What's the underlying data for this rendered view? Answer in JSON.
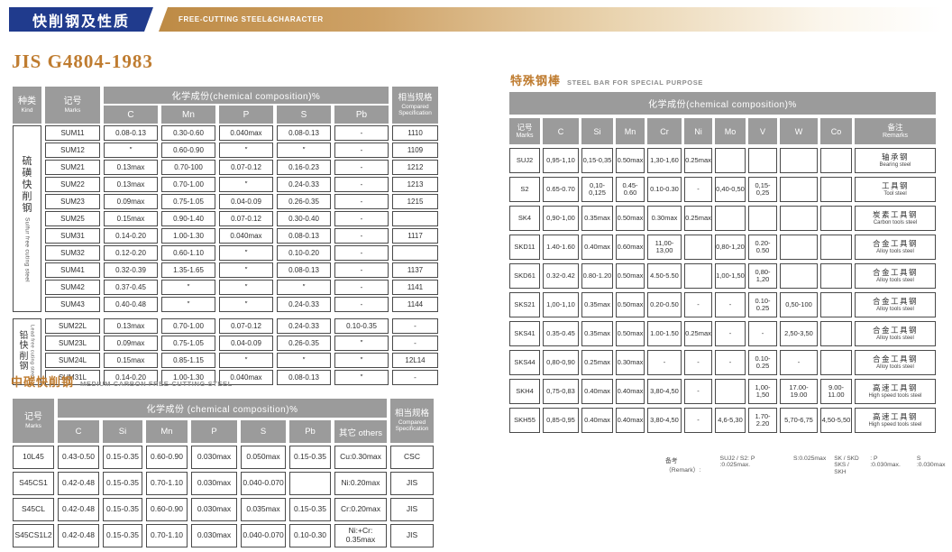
{
  "banner": {
    "title_cn": "快削钢及性质",
    "title_en": "FREE-CUTTING STEEL&CHARACTER"
  },
  "colors": {
    "navy": "#203b8d",
    "gold": "#bd8a44",
    "bronze_text": "#bf7c30",
    "header_gray": "#9b9b9b"
  },
  "jis": {
    "title": "JIS G4804-1983",
    "header": {
      "kind_cn": "种类",
      "kind_en": "Kind",
      "marks_cn": "记号",
      "marks_en": "Marks",
      "composition": "化学成份(chemical composition)%",
      "elements": [
        "C",
        "Mn",
        "P",
        "S",
        "Pb"
      ],
      "spec_cn": "相当规格",
      "spec_en1": "Compared",
      "spec_en2": "Specification"
    },
    "groups": [
      {
        "kind_cn": "硫磺快削钢",
        "kind_en": "Sulfur free cuting steel",
        "rows": [
          [
            "SUM11",
            "0.08-0.13",
            "0.30-0.60",
            "0.040max",
            "0.08-0.13",
            "-",
            "1110"
          ],
          [
            "SUM12",
            "″",
            "0.60-0.90",
            "″",
            "″",
            "-",
            "1109"
          ],
          [
            "SUM21",
            "0.13max",
            "0.70-100",
            "0.07-0.12",
            "0.16-0.23",
            "-",
            "1212"
          ],
          [
            "SUM22",
            "0.13max",
            "0.70-1.00",
            "″",
            "0.24-0.33",
            "-",
            "1213"
          ],
          [
            "SUM23",
            "0.09max",
            "0.75-1.05",
            "0.04-0.09",
            "0.26-0.35",
            "-",
            "1215"
          ],
          [
            "SUM25",
            "0.15max",
            "0.90-1.40",
            "0.07-0.12",
            "0.30-0.40",
            "-",
            ""
          ],
          [
            "SUM31",
            "0.14-0.20",
            "1.00-1.30",
            "0.040max",
            "0.08-0.13",
            "-",
            "1117"
          ],
          [
            "SUM32",
            "0.12-0.20",
            "0.60-1.10",
            "″",
            "0.10-0.20",
            "-",
            ""
          ],
          [
            "SUM41",
            "0.32-0.39",
            "1.35-1.65",
            "″",
            "0.08-0.13",
            "-",
            "1137"
          ],
          [
            "SUM42",
            "0.37-0.45",
            "″",
            "″",
            "″",
            "-",
            "1141"
          ],
          [
            "SUM43",
            "0.40-0.48",
            "″",
            "″",
            "0.24-0.33",
            "-",
            "1144"
          ]
        ]
      },
      {
        "kind_cn": "铅快削钢",
        "kind_en": "Lead free cuting steel",
        "rows": [
          [
            "SUM22L",
            "0.13max",
            "0.70-1.00",
            "0.07-0.12",
            "0.24-0.33",
            "0.10-0.35",
            "-"
          ],
          [
            "SUM23L",
            "0.09max",
            "0.75-1.05",
            "0.04-0.09",
            "0.26-0.35",
            "″",
            "-"
          ],
          [
            "SUM24L",
            "0.15max",
            "0.85-1.15",
            "″",
            "″",
            "″",
            "12L14"
          ],
          [
            "SUM31L",
            "0.14-0.20",
            "1.00-1.30",
            "0.040max",
            "0.08-0.13",
            "″",
            "-"
          ]
        ]
      }
    ]
  },
  "medium": {
    "title_cn": "中碳快削钢",
    "title_en": "MEDIUM CARBON FREE-CUTTING STEEL",
    "header": {
      "marks_cn": "记号",
      "marks_en": "Marks",
      "composition": "化学成份 (chemical composition)%",
      "elements": [
        "C",
        "Si",
        "Mn",
        "P",
        "S",
        "Pb",
        "其它 others"
      ],
      "spec_cn": "相当规格",
      "spec_en1": "Compared",
      "spec_en2": "Specification"
    },
    "rows": [
      [
        "10L45",
        "0.43-0.50",
        "0.15-0.35",
        "0.60-0.90",
        "0.030max",
        "0.050max",
        "0.15-0.35",
        "Cu:0.30max",
        "CSC"
      ],
      [
        "S45CS1",
        "0.42-0.48",
        "0.15-0.35",
        "0.70-1.10",
        "0.030max",
        "0.040-0.070",
        "",
        "Ni:0.20max",
        "JIS"
      ],
      [
        "S45CL",
        "0.42-0.48",
        "0.15-0.35",
        "0.60-0.90",
        "0.030max",
        "0.035max",
        "0.15-0.35",
        "Cr:0.20max",
        "JIS"
      ],
      [
        "S45CS1L2",
        "0.42-0.48",
        "0.15-0.35",
        "0.70-1.10",
        "0.030max",
        "0.040-0.070",
        "0.10-0.30",
        "Ni:+Cr:\n0.35max",
        "JIS"
      ]
    ]
  },
  "special": {
    "title_cn": "特殊钢棒",
    "title_en": "STEEL BAR FOR SPECIAL PURPOSE",
    "header": {
      "composition": "化学成份(chemical composition)%",
      "marks_cn": "记号",
      "marks_en": "Marks",
      "elements": [
        "C",
        "Si",
        "Mn",
        "Cr",
        "Ni",
        "Mo",
        "V",
        "W",
        "Co"
      ],
      "remarks_cn": "备注",
      "remarks_en": "Remarks"
    },
    "rows": [
      {
        "mark": "SUJ2",
        "values": [
          "0,95-1,10",
          "0,15-0,35",
          "0.50max",
          "1,30-1,60",
          "0.25max",
          "",
          "",
          "",
          ""
        ],
        "remark_cn": "轴承钢",
        "remark_en": "Bearing steel"
      },
      {
        "mark": "S2",
        "values": [
          "0.65-0.70",
          "0,10-0,125",
          "0.45-0.60",
          "0.10-0.30",
          "-",
          "0,40-0,50",
          "0,15-0,25",
          "",
          ""
        ],
        "remark_cn": "工具钢",
        "remark_en": "Tool steel"
      },
      {
        "mark": "SK4",
        "values": [
          "0,90-1,00",
          "0.35max",
          "0.50max",
          "0.30max",
          "0.25max",
          "",
          "",
          "",
          ""
        ],
        "remark_cn": "炭素工具钢",
        "remark_en": "Carbon tools steel"
      },
      {
        "mark": "SKD11",
        "values": [
          "1.40-1.60",
          "0.40max",
          "0.60max",
          "11,00-13,00",
          "",
          "0,80-1,20",
          "0.20-0.50",
          "",
          ""
        ],
        "remark_cn": "合金工具钢",
        "remark_en": "Alloy tools steel"
      },
      {
        "mark": "SKD61",
        "values": [
          "0.32-0.42",
          "0.80-1.20",
          "0.50max",
          "4.50-5.50",
          "",
          "1,00-1,50",
          "0,80-1,20",
          "",
          ""
        ],
        "remark_cn": "合金工具钢",
        "remark_en": "Alloy tools steel"
      },
      {
        "mark": "SKS21",
        "values": [
          "1,00-1,10",
          "0.35max",
          "0.50max",
          "0.20-0.50",
          "-",
          "-",
          "0.10-0.25",
          "0,50-100",
          ""
        ],
        "remark_cn": "合金工具钢",
        "remark_en": "Alloy tools steel"
      },
      {
        "mark": "SKS41",
        "values": [
          "0.35-0.45",
          "0.35max",
          "0.50max",
          "1.00-1.50",
          "0.25max",
          "-",
          "-",
          "2,50-3,50",
          ""
        ],
        "remark_cn": "合金工具钢",
        "remark_en": "Alloy tools steel"
      },
      {
        "mark": "SKS44",
        "values": [
          "0,80-0,90",
          "0.25max",
          "0.30max",
          "-",
          "-",
          "-",
          "0.10-0.25",
          "-",
          ""
        ],
        "remark_cn": "合金工具钢",
        "remark_en": "Alloy tools steel"
      },
      {
        "mark": "SKH4",
        "values": [
          "0,75-0,83",
          "0.40max",
          "0.40max",
          "3,80-4,50",
          "-",
          "",
          "1,00-1,50",
          "17.00-19.00",
          "9.00-11.00"
        ],
        "remark_cn": "高速工具钢",
        "remark_en": "High speed tools steel"
      },
      {
        "mark": "SKH55",
        "values": [
          "0,85-0,95",
          "0.40max",
          "0.40max",
          "3,80-4,50",
          "-",
          "4,6-5,30",
          "1.70-2.20",
          "5,70-6,75",
          "4,50-5,50"
        ],
        "remark_cn": "高速工具钢",
        "remark_en": "High speed tools steel"
      }
    ],
    "footnote": {
      "label": "备考（Remark）:",
      "part1": "SUJ2 / S2:  P :0.025max.",
      "part1b": "S:0.025max",
      "stack_top": "SK / SKD",
      "stack_bottom": "SKS / SKH",
      "part2": ": P :0.030max.",
      "part2b": "S :0.030max"
    }
  }
}
